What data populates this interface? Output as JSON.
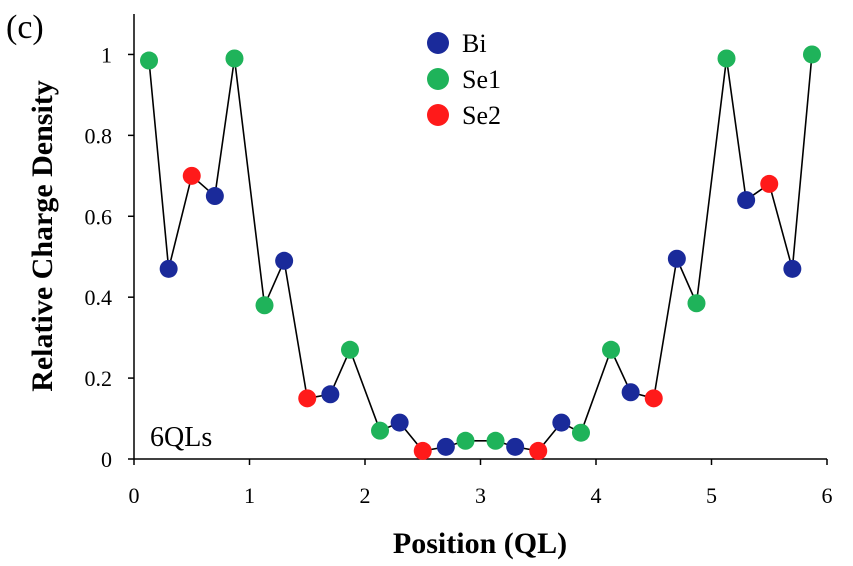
{
  "chart_data": {
    "type": "line",
    "panel_label": "(c)",
    "annotation": "6QLs",
    "xlabel": "Position (QL)",
    "ylabel": "Relative Charge Density",
    "xlim": [
      0,
      6
    ],
    "ylim": [
      0,
      1.1
    ],
    "xticks": [
      "0",
      "1",
      "2",
      "3",
      "4",
      "5",
      "6"
    ],
    "yticks": [
      "0",
      "0.2",
      "0.4",
      "0.6",
      "0.8",
      "1"
    ],
    "line_color": "#000000",
    "legend": [
      {
        "name": "Bi",
        "color": "#1a2a9a"
      },
      {
        "name": "Se1",
        "color": "#1fb35a"
      },
      {
        "name": "Se2",
        "color": "#ff1a1a"
      }
    ],
    "series_colors": {
      "Bi": "#1a2a9a",
      "Se1": "#1fb35a",
      "Se2": "#ff1a1a"
    },
    "points": [
      {
        "x": 0.13,
        "y": 0.985,
        "s": "Se1"
      },
      {
        "x": 0.3,
        "y": 0.47,
        "s": "Bi"
      },
      {
        "x": 0.5,
        "y": 0.7,
        "s": "Se2"
      },
      {
        "x": 0.7,
        "y": 0.65,
        "s": "Bi"
      },
      {
        "x": 0.87,
        "y": 0.99,
        "s": "Se1"
      },
      {
        "x": 1.13,
        "y": 0.38,
        "s": "Se1"
      },
      {
        "x": 1.3,
        "y": 0.49,
        "s": "Bi"
      },
      {
        "x": 1.5,
        "y": 0.15,
        "s": "Se2"
      },
      {
        "x": 1.7,
        "y": 0.16,
        "s": "Bi"
      },
      {
        "x": 1.87,
        "y": 0.27,
        "s": "Se1"
      },
      {
        "x": 2.13,
        "y": 0.07,
        "s": "Se1"
      },
      {
        "x": 2.3,
        "y": 0.09,
        "s": "Bi"
      },
      {
        "x": 2.5,
        "y": 0.02,
        "s": "Se2"
      },
      {
        "x": 2.7,
        "y": 0.03,
        "s": "Bi"
      },
      {
        "x": 2.87,
        "y": 0.045,
        "s": "Se1"
      },
      {
        "x": 3.13,
        "y": 0.045,
        "s": "Se1"
      },
      {
        "x": 3.3,
        "y": 0.03,
        "s": "Bi"
      },
      {
        "x": 3.5,
        "y": 0.02,
        "s": "Se2"
      },
      {
        "x": 3.7,
        "y": 0.09,
        "s": "Bi"
      },
      {
        "x": 3.87,
        "y": 0.065,
        "s": "Se1"
      },
      {
        "x": 4.13,
        "y": 0.27,
        "s": "Se1"
      },
      {
        "x": 4.3,
        "y": 0.165,
        "s": "Bi"
      },
      {
        "x": 4.5,
        "y": 0.15,
        "s": "Se2"
      },
      {
        "x": 4.7,
        "y": 0.495,
        "s": "Bi"
      },
      {
        "x": 4.87,
        "y": 0.385,
        "s": "Se1"
      },
      {
        "x": 5.13,
        "y": 0.99,
        "s": "Se1"
      },
      {
        "x": 5.3,
        "y": 0.64,
        "s": "Bi"
      },
      {
        "x": 5.5,
        "y": 0.68,
        "s": "Se2"
      },
      {
        "x": 5.7,
        "y": 0.47,
        "s": "Bi"
      },
      {
        "x": 5.87,
        "y": 1.0,
        "s": "Se1"
      }
    ]
  }
}
